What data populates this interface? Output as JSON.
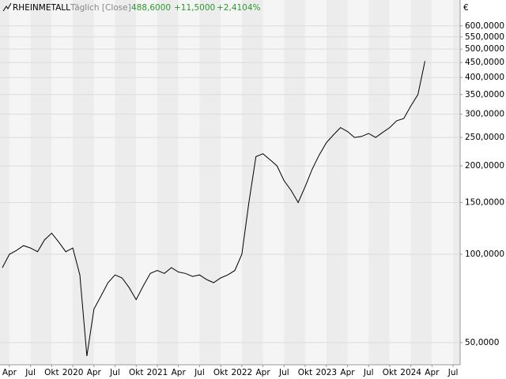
{
  "chart_data": {
    "type": "line",
    "title": "RHEINMETALL",
    "subtitle": "Täglich [Close]",
    "last": "488,6000",
    "change": "+11,5000",
    "change_pct": "+2,4104%",
    "currency": "€",
    "log_y": true,
    "grid": true,
    "x": [
      "2019-03",
      "2019-04",
      "2019-05",
      "2019-06",
      "2019-07",
      "2019-08",
      "2019-09",
      "2019-10",
      "2019-11",
      "2019-12",
      "2020-01",
      "2020-02",
      "2020-03",
      "2020-04",
      "2020-05",
      "2020-06",
      "2020-07",
      "2020-08",
      "2020-09",
      "2020-10",
      "2020-11",
      "2020-12",
      "2021-01",
      "2021-02",
      "2021-03",
      "2021-04",
      "2021-05",
      "2021-06",
      "2021-07",
      "2021-08",
      "2021-09",
      "2021-10",
      "2021-11",
      "2021-12",
      "2022-01",
      "2022-02",
      "2022-03",
      "2022-04",
      "2022-05",
      "2022-06",
      "2022-07",
      "2022-08",
      "2022-09",
      "2022-10",
      "2022-11",
      "2022-12",
      "2023-01",
      "2023-02",
      "2023-03",
      "2023-04",
      "2023-05",
      "2023-06",
      "2023-07",
      "2023-08",
      "2023-09",
      "2023-10",
      "2023-11",
      "2023-12",
      "2024-01",
      "2024-02",
      "2024-03"
    ],
    "series": [
      {
        "name": "RHEINMETALL",
        "color": "#000000",
        "values": [
          90,
          100,
          103,
          107,
          105,
          102,
          112,
          118,
          110,
          102,
          105,
          85,
          45,
          65,
          72,
          80,
          85,
          83,
          77,
          70,
          78,
          86,
          88,
          86,
          90,
          87,
          86,
          84,
          85,
          82,
          80,
          83,
          85,
          88,
          100,
          150,
          215,
          220,
          210,
          200,
          178,
          165,
          150,
          170,
          195,
          218,
          240,
          255,
          270,
          262,
          250,
          252,
          258,
          250,
          260,
          270,
          285,
          290,
          320,
          350,
          455
        ]
      }
    ],
    "xlim": [
      "2019-03",
      "2024-08"
    ],
    "xticks": [
      {
        "value": "2019-04",
        "label": "Apr"
      },
      {
        "value": "2019-07",
        "label": "Jul"
      },
      {
        "value": "2019-10",
        "label": "Okt"
      },
      {
        "value": "2020-01",
        "label": "2020"
      },
      {
        "value": "2020-04",
        "label": "Apr"
      },
      {
        "value": "2020-07",
        "label": "Jul"
      },
      {
        "value": "2020-10",
        "label": "Okt"
      },
      {
        "value": "2021-01",
        "label": "2021"
      },
      {
        "value": "2021-04",
        "label": "Apr"
      },
      {
        "value": "2021-07",
        "label": "Jul"
      },
      {
        "value": "2021-10",
        "label": "Okt"
      },
      {
        "value": "2022-01",
        "label": "2022"
      },
      {
        "value": "2022-04",
        "label": "Apr"
      },
      {
        "value": "2022-07",
        "label": "Jul"
      },
      {
        "value": "2022-10",
        "label": "Okt"
      },
      {
        "value": "2023-01",
        "label": "2023"
      },
      {
        "value": "2023-04",
        "label": "Apr"
      },
      {
        "value": "2023-07",
        "label": "Jul"
      },
      {
        "value": "2023-10",
        "label": "Okt"
      },
      {
        "value": "2024-01",
        "label": "2024"
      },
      {
        "value": "2024-04",
        "label": "Apr"
      },
      {
        "value": "2024-07",
        "label": "Jul"
      }
    ],
    "ylim": [
      42,
      735
    ],
    "yticks": [
      {
        "value": 50,
        "label": "50,0000"
      },
      {
        "value": 100,
        "label": "100,0000"
      },
      {
        "value": 150,
        "label": "150,0000"
      },
      {
        "value": 200,
        "label": "200,0000"
      },
      {
        "value": 250,
        "label": "250,0000"
      },
      {
        "value": 300,
        "label": "300,0000"
      },
      {
        "value": 350,
        "label": "350,0000"
      },
      {
        "value": 400,
        "label": "400,0000"
      },
      {
        "value": 450,
        "label": "450,0000"
      },
      {
        "value": 500,
        "label": "500,0000"
      },
      {
        "value": 550,
        "label": "550,0000"
      },
      {
        "value": 600,
        "label": "600,0000"
      }
    ]
  }
}
